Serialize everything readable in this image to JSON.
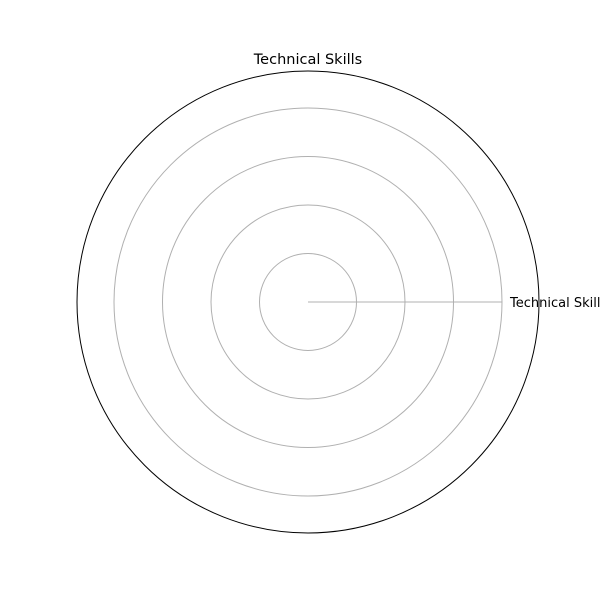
{
  "chart_data": {
    "type": "radar",
    "title": "Technical Skills",
    "categories": [
      "Technical Skills"
    ],
    "series": [
      {
        "values": [
          0
        ]
      }
    ],
    "rlim": [
      0,
      5
    ],
    "grid": true
  },
  "colors": {
    "frame": "#000000",
    "grid": "#b0b0b0",
    "text": "#000000",
    "background": "#ffffff"
  }
}
